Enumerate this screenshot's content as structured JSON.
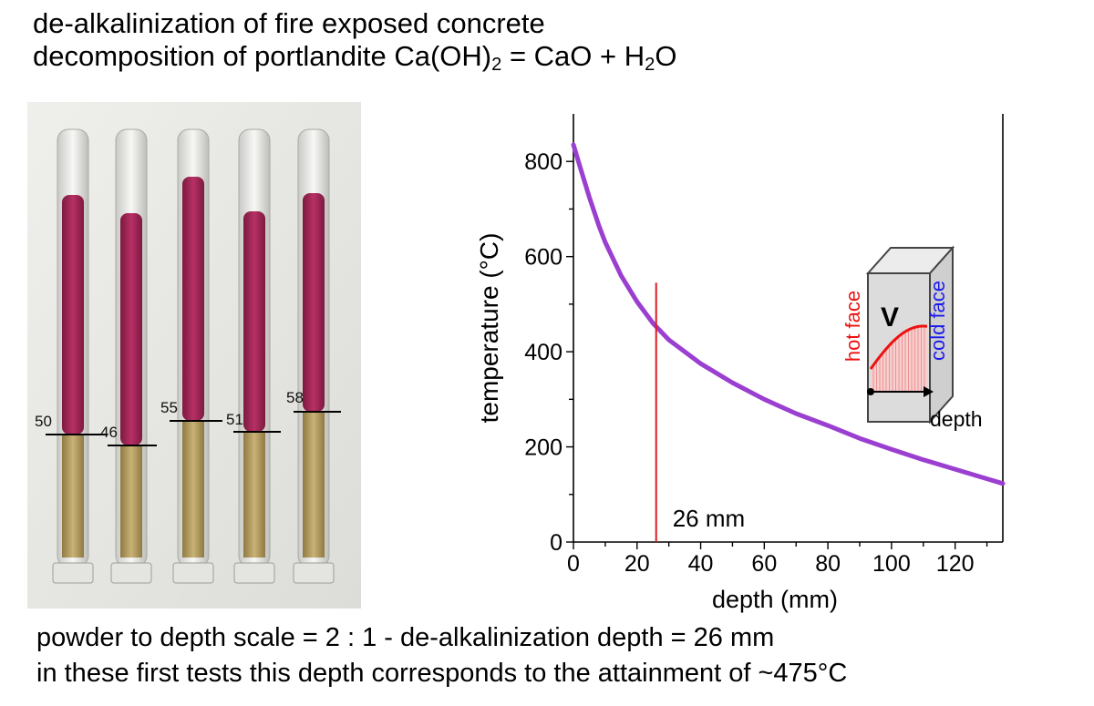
{
  "header": {
    "line1": "de-alkalinization of fire exposed concrete",
    "line2_prefix": "decomposition of portlandite  Ca(OH)",
    "line2_sub1": "2",
    "line2_mid": " = CaO + H",
    "line2_sub2": "2",
    "line2_suffix": "O"
  },
  "photo": {
    "tube_labels": [
      "50",
      "46",
      "55",
      "51",
      "58"
    ],
    "colors": {
      "magenta_powder": "#a8285a",
      "tan_powder": "#bfa468",
      "background": "#e9e9e6"
    }
  },
  "chart_data": {
    "type": "line",
    "xlabel": "depth (mm)",
    "ylabel": "temperature (°C)",
    "xlim": [
      0,
      135
    ],
    "ylim": [
      0,
      900
    ],
    "xticks": [
      0,
      20,
      40,
      60,
      80,
      100,
      120
    ],
    "yticks": [
      0,
      200,
      400,
      600,
      800
    ],
    "series": [
      {
        "color": "#9b3fd0",
        "x": [
          0,
          2,
          5,
          8,
          10,
          15,
          20,
          25,
          30,
          40,
          50,
          60,
          70,
          80,
          90,
          100,
          110,
          120,
          128,
          135
        ],
        "y": [
          835,
          790,
          725,
          665,
          630,
          560,
          505,
          460,
          425,
          375,
          335,
          300,
          270,
          245,
          218,
          195,
          173,
          153,
          137,
          123
        ]
      }
    ],
    "marker_line": {
      "x": 26,
      "y_top": 545,
      "color": "#e01b1b",
      "label": "26 mm"
    },
    "inset": {
      "hot_face": "hot face",
      "cold_face": "cold face",
      "symbol": "V",
      "axis_label": "depth",
      "colors": {
        "hot": "#ee1111",
        "cold": "#1a1aee",
        "block": "#d8d8d8"
      }
    }
  },
  "footer": {
    "line1": "powder to depth scale = 2 : 1  -  de-alkalinization depth = 26 mm",
    "line2": "in these first tests this depth corresponds to the attainment of ~475°C"
  }
}
